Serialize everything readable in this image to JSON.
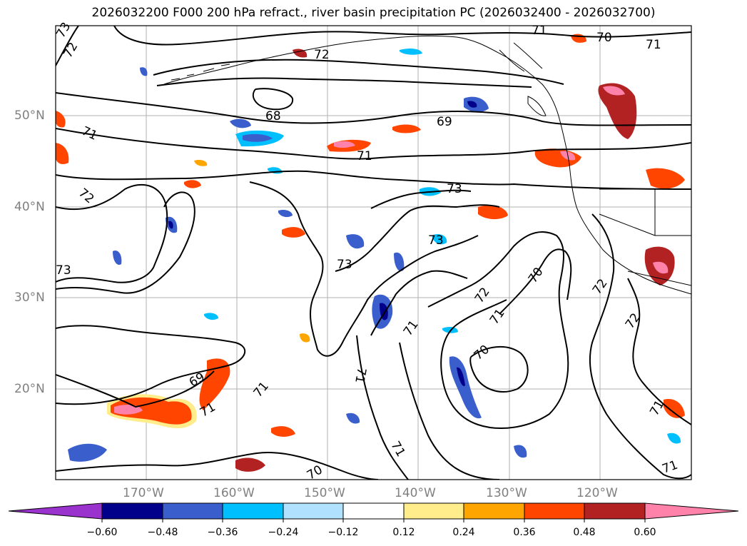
{
  "title": "2026032200 F000 200 hPa refract., river basin precipitation PC (2026032400 - 2026032700)",
  "lat_labels": [
    "50°N",
    "40°N",
    "30°N",
    "20°N"
  ],
  "lon_labels": [
    "170°W",
    "160°W",
    "150°W",
    "140°W",
    "130°W",
    "120°W"
  ],
  "contour_labels": [
    "73",
    "72",
    "71",
    "71",
    "72",
    "73",
    "72",
    "68",
    "71",
    "69",
    "70",
    "71",
    "73",
    "73",
    "73",
    "72",
    "71",
    "70",
    "71",
    "72",
    "70",
    "71",
    "72",
    "69",
    "71",
    "71",
    "70",
    "71",
    "71",
    "71"
  ],
  "colorbar": {
    "ticks": [
      "−0.60",
      "−0.48",
      "−0.36",
      "−0.24",
      "−0.12",
      "0.12",
      "0.24",
      "0.36",
      "0.48",
      "0.60"
    ],
    "colors": [
      "#9a32cd",
      "#00008b",
      "#3a5fcd",
      "#00bfff",
      "#b0e2ff",
      "#ffffff",
      "#ffec8b",
      "#ffa500",
      "#ff4500",
      "#b22222",
      "#ff82ab"
    ]
  }
}
